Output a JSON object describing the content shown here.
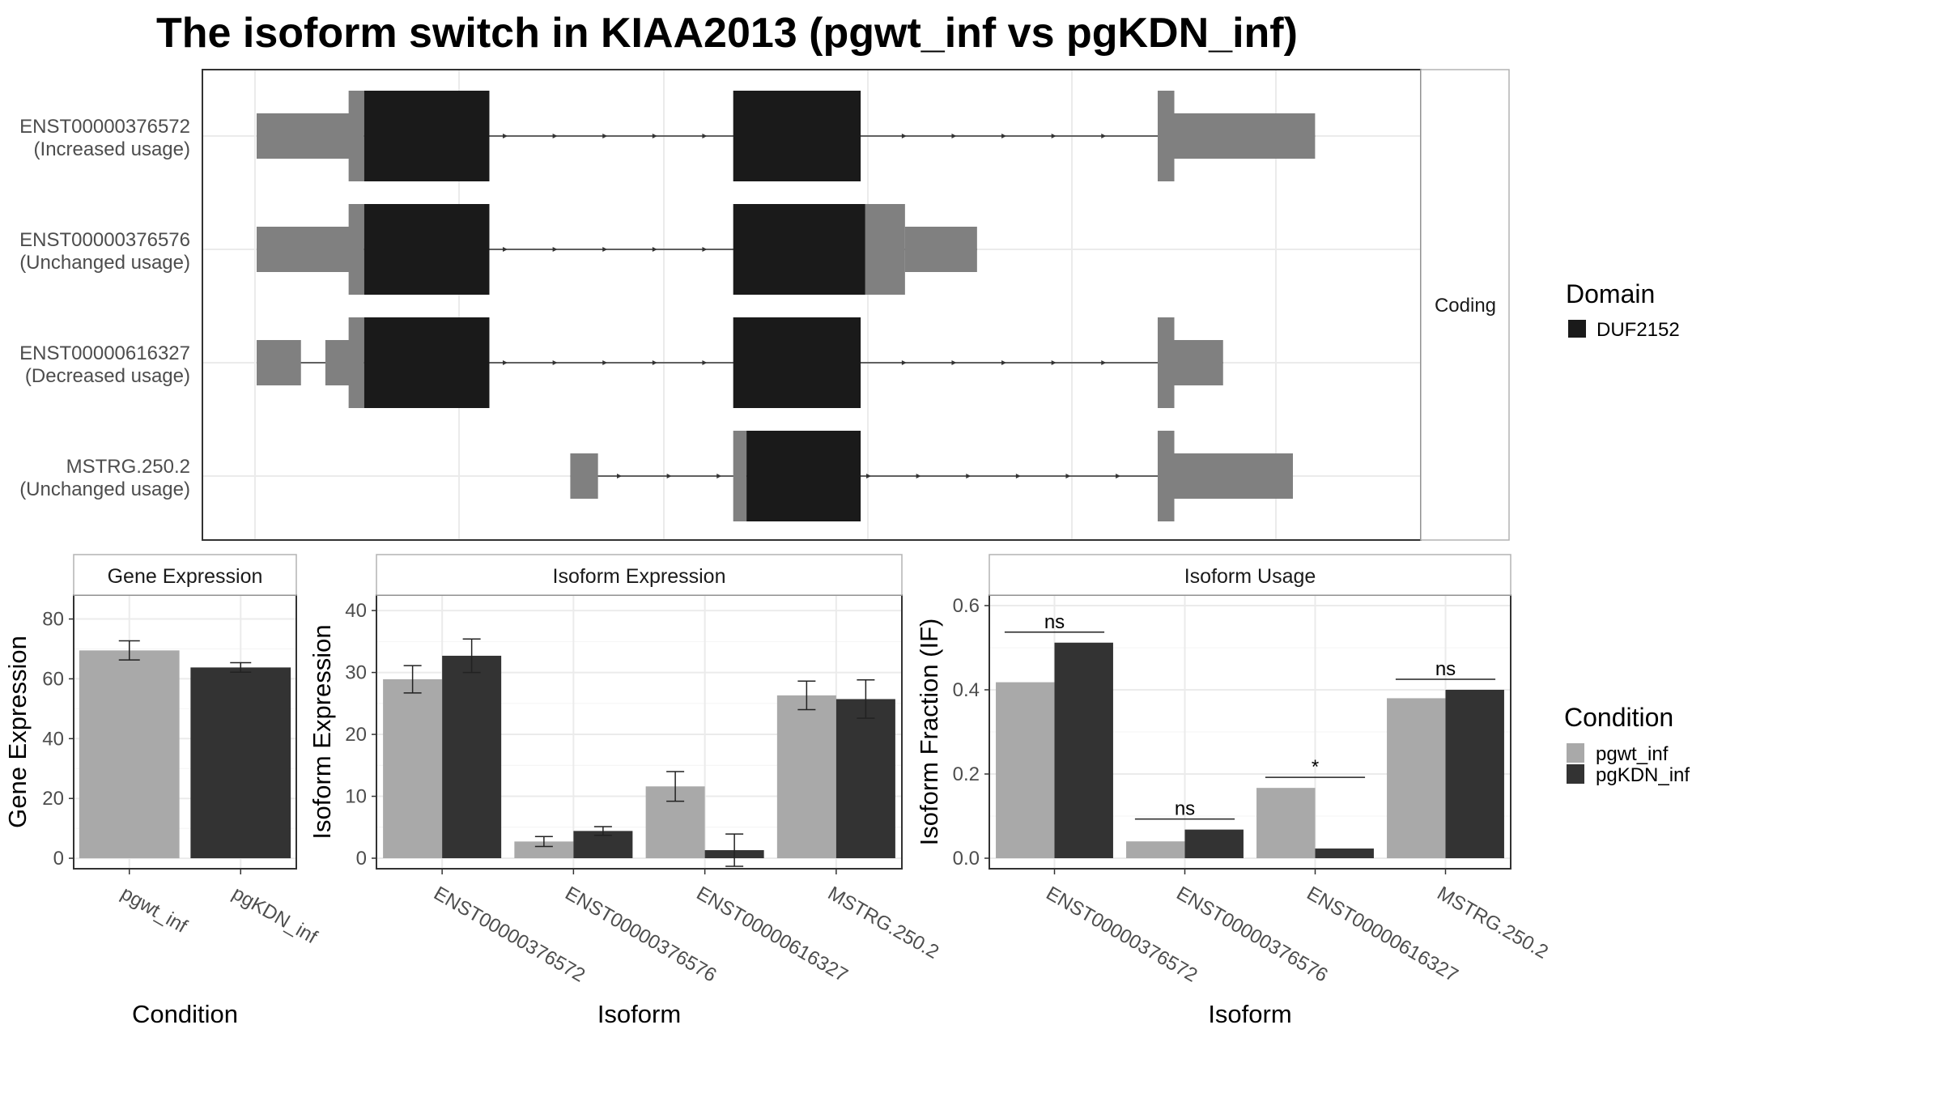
{
  "title": "The isoform switch in KIAA2013 (pgwt_inf vs pgKDN_inf)",
  "colors": {
    "pgwt_inf": "#a9a9a9",
    "pgKDN_inf": "#333333",
    "domain_duf2152": "#1a1a1a",
    "noncoding_exon": "#808080",
    "grid": "#ebebeb",
    "panel_border": "#333333",
    "strip_bg": "#ffffff"
  },
  "structure": {
    "strip_label": "Coding",
    "legend_title": "Domain",
    "legend_items": [
      {
        "label": "DUF2152",
        "color": "#1a1a1a"
      }
    ],
    "transcripts": [
      {
        "id": "ENST00000376572",
        "usage": "(Increased usage)",
        "utr": [
          [
            0.0,
            0.085
          ],
          [
            0.818,
            0.955
          ]
        ],
        "cds_ends": [
          [
            0.083,
            0.097
          ],
          [
            0.813,
            0.828
          ]
        ],
        "domain": [
          [
            0.097,
            0.21
          ],
          [
            0.43,
            0.545
          ]
        ]
      },
      {
        "id": "ENST00000376576",
        "usage": "(Unchanged usage)",
        "utr": [
          [
            0.0,
            0.085
          ],
          [
            0.585,
            0.65
          ]
        ],
        "cds_ends": [
          [
            0.083,
            0.097
          ],
          [
            0.545,
            0.585
          ]
        ],
        "domain": [
          [
            0.097,
            0.21
          ],
          [
            0.43,
            0.549
          ]
        ]
      },
      {
        "id": "ENST00000616327",
        "usage": "(Decreased usage)",
        "utr": [
          [
            0.0,
            0.04
          ],
          [
            0.062,
            0.085
          ],
          [
            0.818,
            0.872
          ]
        ],
        "cds_ends": [
          [
            0.083,
            0.097
          ],
          [
            0.813,
            0.828
          ]
        ],
        "domain": [
          [
            0.097,
            0.21
          ],
          [
            0.43,
            0.545
          ]
        ]
      },
      {
        "id": "MSTRG.250.2",
        "usage": "(Unchanged usage)",
        "utr": [
          [
            0.283,
            0.308
          ],
          [
            0.818,
            0.935
          ]
        ],
        "cds_ends": [
          [
            0.43,
            0.442
          ],
          [
            0.813,
            0.828
          ]
        ],
        "domain": [
          [
            0.442,
            0.545
          ]
        ]
      }
    ]
  },
  "chart_data": [
    {
      "type": "bar",
      "strip": "Gene Expression",
      "ylabel": "Gene Expression",
      "xlabel": "Condition",
      "categories": [
        "pgwt_inf",
        "pgKDN_inf"
      ],
      "values": [
        69.5,
        63.8
      ],
      "errors": [
        3.2,
        1.6
      ],
      "ylim": [
        -3.5,
        88
      ],
      "yticks": [
        "0",
        "20",
        "40",
        "60",
        "80"
      ]
    },
    {
      "type": "bar",
      "strip": "Isoform Expression",
      "ylabel": "Isoform Expression",
      "xlabel": "Isoform",
      "categories": [
        "ENST00000376572",
        "ENST00000376576",
        "ENST00000616327",
        "MSTRG.250.2"
      ],
      "series": [
        {
          "name": "pgwt_inf",
          "values": [
            28.9,
            2.7,
            11.6,
            26.3
          ],
          "errors": [
            2.2,
            0.8,
            2.4,
            2.3
          ]
        },
        {
          "name": "pgKDN_inf",
          "values": [
            32.7,
            4.4,
            1.3,
            25.7
          ],
          "errors": [
            2.7,
            0.7,
            2.6,
            3.1
          ]
        }
      ],
      "ylim": [
        -1.7,
        42.5
      ],
      "yticks": [
        "0",
        "10",
        "20",
        "30",
        "40"
      ]
    },
    {
      "type": "bar",
      "strip": "Isoform Usage",
      "ylabel": "Isoform Fraction (IF)",
      "xlabel": "Isoform",
      "categories": [
        "ENST00000376572",
        "ENST00000376576",
        "ENST00000616327",
        "MSTRG.250.2"
      ],
      "series": [
        {
          "name": "pgwt_inf",
          "values": [
            0.418,
            0.04,
            0.167,
            0.38
          ]
        },
        {
          "name": "pgKDN_inf",
          "values": [
            0.512,
            0.068,
            0.023,
            0.4
          ]
        }
      ],
      "significance": [
        "ns",
        "ns",
        "*",
        "ns"
      ],
      "ylim": [
        -0.025,
        0.625
      ],
      "yticks": [
        "0.0",
        "0.2",
        "0.4",
        "0.6"
      ]
    }
  ],
  "condition_legend": {
    "title": "Condition",
    "items": [
      {
        "label": "pgwt_inf",
        "color": "#a9a9a9"
      },
      {
        "label": "pgKDN_inf",
        "color": "#333333"
      }
    ]
  }
}
